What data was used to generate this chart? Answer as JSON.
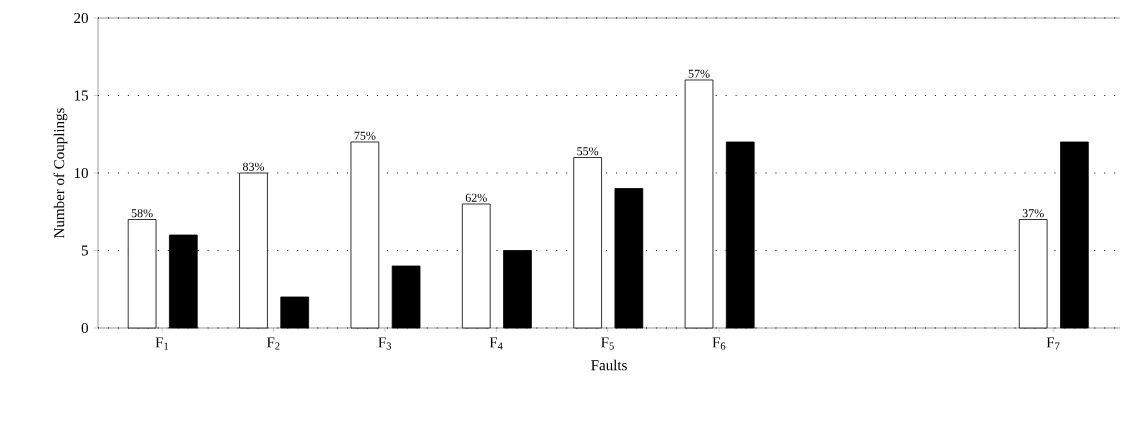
{
  "chart_data": {
    "type": "bar",
    "xlabel": "Faults",
    "ylabel": "Number of Couplings",
    "categories": [
      "F$_{1}$",
      "F$_{2}$",
      "F$_{3}$",
      "F$_{4}$",
      "F$_{5}$",
      "F$_{6}$",
      null,
      null,
      "F$_{7}$"
    ],
    "series": [
      {
        "color": "#ffffff",
        "values": [
          7,
          10,
          12,
          8,
          11,
          16,
          null,
          null,
          7
        ]
      },
      {
        "color": "#000000",
        "values": [
          6,
          2,
          4,
          5,
          9,
          12,
          null,
          null,
          12
        ]
      }
    ],
    "annotations": [
      "58%",
      "83%",
      "75%",
      "62%",
      "55%",
      "57%",
      "37%"
    ],
    "ylim": [
      0,
      20
    ],
    "yticks": [
      0,
      5,
      10,
      15,
      20
    ],
    "grid": "y"
  }
}
